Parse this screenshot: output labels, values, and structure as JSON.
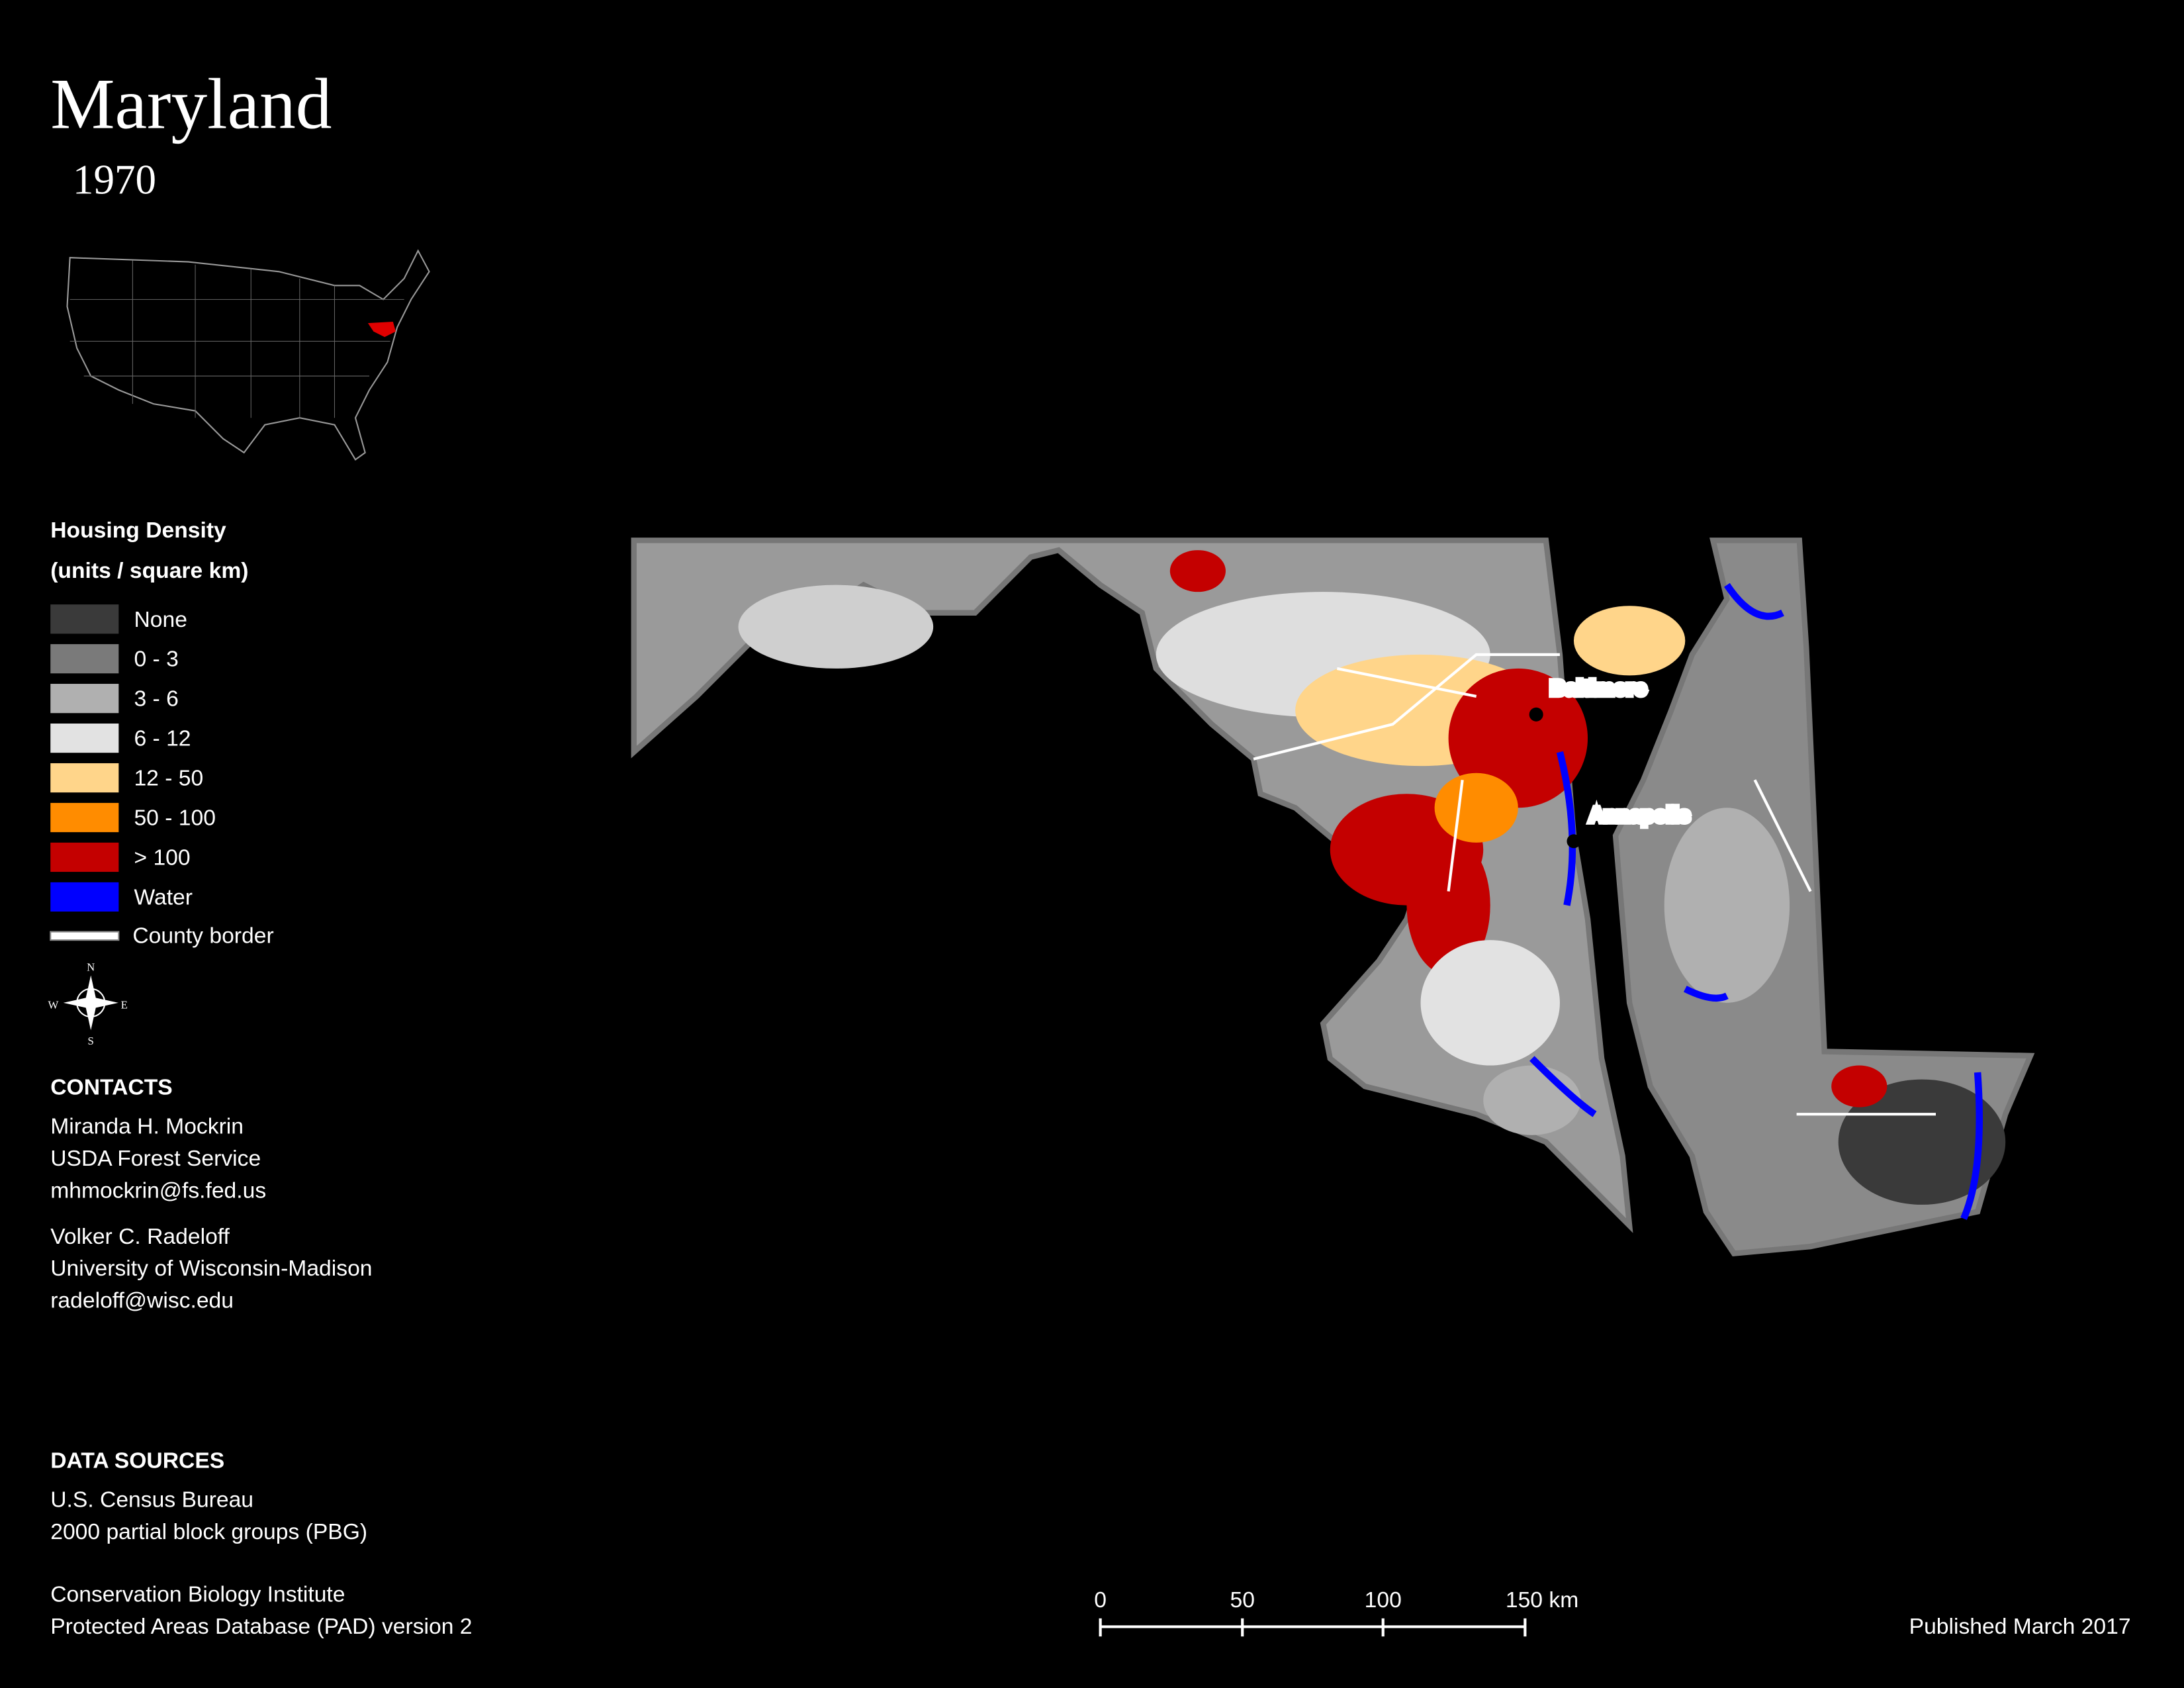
{
  "header": {
    "title": "Maryland",
    "year": "1970"
  },
  "legend": {
    "title": "Housing Density",
    "subtitle": "(units / square km)",
    "items": [
      {
        "label": "None",
        "color": "#3a3a3a"
      },
      {
        "label": "0 - 3",
        "color": "#7a7a7a"
      },
      {
        "label": "3 - 6",
        "color": "#b0b0b0"
      },
      {
        "label": "6 - 12",
        "color": "#e2e2e2"
      },
      {
        "label": "12 - 50",
        "color": "#ffd58a"
      },
      {
        "label": "50 - 100",
        "color": "#ff8c00"
      },
      {
        "label": "> 100",
        "color": "#c40000"
      },
      {
        "label": "Water",
        "color": "#0000ff"
      }
    ],
    "county_border": "County border"
  },
  "compass": {
    "north": "N",
    "east": "E",
    "south": "S",
    "west": "W"
  },
  "contacts": {
    "title": "CONTACTS",
    "people": [
      [
        "Miranda H. Mockrin",
        "USDA Forest Service",
        "mhmockrin@fs.fed.us"
      ],
      [
        "Volker C. Radeloff",
        "University of Wisconsin-Madison",
        "radeloff@wisc.edu"
      ]
    ]
  },
  "data_sources": {
    "title": "DATA SOURCES",
    "groups": [
      [
        "U.S. Census Bureau",
        "2000 partial block groups (PBG)"
      ],
      [
        "Conservation Biology Institute",
        "Protected Areas Database (PAD) version 2"
      ]
    ]
  },
  "cities": [
    "Baltimore",
    "Annapolis"
  ],
  "scale_bar": [
    "0",
    "50",
    "100",
    "150 km"
  ],
  "published": "Published March 2017"
}
